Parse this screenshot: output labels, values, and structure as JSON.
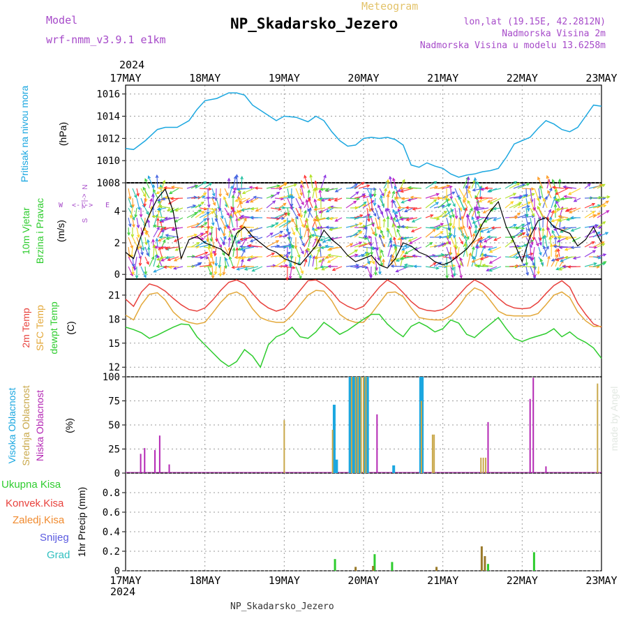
{
  "header": {
    "model_label": "Model",
    "model_name": "wrf-nmm_v3.9.1  e1km",
    "meteogram_label": "Meteogram",
    "station": "NP_Skadarsko_Jezero",
    "lonlat": "lon,lat (19.15E, 42.2812N)",
    "elevation": "Nadmorska Visina 2m",
    "model_elevation": "Nadmorska Visina u modelu 13.6258m",
    "year_top": "2024",
    "year_bottom": "2024",
    "footer_station": "NP_Skadarsko_Jezero",
    "credit": "made by Angel"
  },
  "colors": {
    "pressure": "#1ba7e0",
    "t2m": "#e8413c",
    "tsfc": "#e3a83a",
    "dewpoint": "#2ecc2e",
    "cloud_high": "#1ba7e0",
    "cloud_mid": "#c9a84a",
    "cloud_low": "#b428b4",
    "precip_total": "#2ecc2e",
    "precip_conv": "#e8413c",
    "precip_frozen": "#f08a2e",
    "snow": "#5a5ae0",
    "grad": "#30c0c0",
    "label_purple": "#a64ac9",
    "gold": "#e3c36a"
  },
  "chart_data": [
    {
      "type": "line",
      "panel": "pressure",
      "ylabel_side": "Pritisak na nivou mora",
      "ylabel_units": "(hPa)",
      "x_ticks": [
        "17MAY",
        "18MAY",
        "19MAY",
        "20MAY",
        "21MAY",
        "22MAY",
        "23MAY"
      ],
      "x_range_days": [
        17,
        23
      ],
      "ylim": [
        1008,
        1016.8
      ],
      "y_ticks": [
        "1008",
        "1010",
        "1012",
        "1014",
        "1016"
      ],
      "series": [
        {
          "key": "mslp",
          "x": [
            17.0,
            17.1,
            17.25,
            17.4,
            17.5,
            17.65,
            17.8,
            17.9,
            18.0,
            18.15,
            18.3,
            18.4,
            18.5,
            18.6,
            18.75,
            18.9,
            19.0,
            19.15,
            19.3,
            19.4,
            19.5,
            19.6,
            19.7,
            19.8,
            19.9,
            20.0,
            20.1,
            20.2,
            20.3,
            20.4,
            20.5,
            20.6,
            20.7,
            20.8,
            20.9,
            21.0,
            21.1,
            21.2,
            21.3,
            21.4,
            21.5,
            21.6,
            21.7,
            21.8,
            21.9,
            22.0,
            22.1,
            22.2,
            22.3,
            22.4,
            22.5,
            22.6,
            22.7,
            22.8,
            22.9,
            23.0
          ],
          "y": [
            1011.1,
            1011.0,
            1011.8,
            1012.8,
            1013.0,
            1013.0,
            1013.6,
            1014.6,
            1015.4,
            1015.6,
            1016.1,
            1016.1,
            1015.9,
            1015.0,
            1014.3,
            1013.6,
            1014.0,
            1013.9,
            1013.5,
            1014.0,
            1013.6,
            1012.6,
            1011.8,
            1011.3,
            1011.4,
            1012.0,
            1012.1,
            1012.0,
            1012.1,
            1011.9,
            1011.4,
            1009.6,
            1009.4,
            1009.8,
            1009.5,
            1009.3,
            1008.8,
            1008.5,
            1008.7,
            1008.8,
            1009.0,
            1009.1,
            1009.3,
            1010.3,
            1011.5,
            1011.8,
            1012.1,
            1012.9,
            1013.6,
            1013.3,
            1012.8,
            1012.6,
            1013.0,
            1014.0,
            1015.0,
            1014.9
          ]
        }
      ]
    },
    {
      "type": "line",
      "panel": "wind",
      "ylabel_side": "10m Vjetar Brzina i Pravac",
      "ylabel_units": "(m/s)",
      "compass": {
        "w": "W",
        "e": "E",
        "n": "N",
        "s": "S",
        "arrows": "<-|->"
      },
      "ylim": [
        -0.3,
        5.8
      ],
      "y_ticks": [
        "0",
        "2",
        "4"
      ],
      "series": [
        {
          "key": "wind_speed",
          "x": [
            17.0,
            17.1,
            17.2,
            17.3,
            17.4,
            17.5,
            17.6,
            17.7,
            17.8,
            17.9,
            18.0,
            18.1,
            18.2,
            18.3,
            18.4,
            18.5,
            18.6,
            18.7,
            18.8,
            18.9,
            19.0,
            19.1,
            19.2,
            19.3,
            19.4,
            19.5,
            19.6,
            19.7,
            19.8,
            19.9,
            20.0,
            20.1,
            20.2,
            20.3,
            20.4,
            20.5,
            20.6,
            20.7,
            20.8,
            20.9,
            21.0,
            21.1,
            21.2,
            21.3,
            21.4,
            21.5,
            21.6,
            21.7,
            21.8,
            21.9,
            22.0,
            22.1,
            22.2,
            22.3,
            22.4,
            22.5,
            22.6,
            22.7,
            22.8,
            22.9,
            23.0
          ],
          "y": [
            1.4,
            1.0,
            2.5,
            3.8,
            4.8,
            5.4,
            4.0,
            1.0,
            2.2,
            2.4,
            2.0,
            1.8,
            1.6,
            1.2,
            2.6,
            3.0,
            2.4,
            2.0,
            1.6,
            1.4,
            1.0,
            0.8,
            0.6,
            1.2,
            1.8,
            2.8,
            2.2,
            1.8,
            1.2,
            0.8,
            1.0,
            1.2,
            0.6,
            0.4,
            1.0,
            2.0,
            1.8,
            1.4,
            1.2,
            0.8,
            0.6,
            0.8,
            1.2,
            1.6,
            2.2,
            3.2,
            4.0,
            4.6,
            3.0,
            2.0,
            0.8,
            2.4,
            3.4,
            3.6,
            3.0,
            2.8,
            2.6,
            1.8,
            2.2,
            3.0,
            2.0
          ]
        }
      ]
    },
    {
      "type": "line",
      "panel": "temperature",
      "ylabel_lines": [
        "2m Temp",
        "SFC Temp",
        "dewpt Temp"
      ],
      "ylabel_units": "(C)",
      "ylim": [
        10.8,
        23.0
      ],
      "y_ticks": [
        "12",
        "15",
        "18",
        "21"
      ],
      "series": [
        {
          "key": "t2m",
          "name": "2m Temp",
          "x": [
            17.0,
            17.1,
            17.2,
            17.3,
            17.4,
            17.5,
            17.6,
            17.7,
            17.8,
            17.9,
            18.0,
            18.1,
            18.2,
            18.3,
            18.4,
            18.5,
            18.6,
            18.7,
            18.8,
            18.9,
            19.0,
            19.1,
            19.2,
            19.3,
            19.4,
            19.5,
            19.6,
            19.7,
            19.8,
            19.9,
            20.0,
            20.1,
            20.2,
            20.3,
            20.4,
            20.5,
            20.6,
            20.7,
            20.8,
            20.9,
            21.0,
            21.1,
            21.2,
            21.3,
            21.4,
            21.5,
            21.6,
            21.7,
            21.8,
            21.9,
            22.0,
            22.1,
            22.2,
            22.3,
            22.4,
            22.5,
            22.6,
            22.7,
            22.8,
            22.9,
            23.0
          ],
          "y": [
            20.5,
            19.6,
            21.4,
            22.4,
            22.1,
            21.5,
            20.6,
            19.8,
            19.2,
            19.0,
            19.4,
            20.4,
            21.6,
            22.6,
            22.9,
            22.4,
            21.2,
            20.1,
            19.4,
            19.0,
            19.3,
            20.4,
            21.6,
            22.8,
            22.9,
            22.3,
            21.4,
            20.2,
            19.6,
            19.2,
            19.6,
            20.8,
            22.0,
            22.9,
            22.3,
            21.3,
            20.2,
            19.4,
            19.1,
            19.0,
            19.2,
            19.9,
            21.0,
            22.1,
            22.9,
            22.4,
            21.6,
            20.6,
            19.8,
            19.4,
            19.3,
            19.4,
            20.1,
            21.2,
            22.2,
            22.8,
            22.0,
            20.0,
            18.6,
            17.4,
            17.0
          ]
        },
        {
          "key": "tsfc",
          "name": "SFC Temp",
          "x": [
            17.0,
            17.1,
            17.2,
            17.3,
            17.4,
            17.5,
            17.6,
            17.7,
            17.8,
            17.9,
            18.0,
            18.1,
            18.2,
            18.3,
            18.4,
            18.5,
            18.6,
            18.7,
            18.8,
            18.9,
            19.0,
            19.1,
            19.2,
            19.3,
            19.4,
            19.5,
            19.6,
            19.7,
            19.8,
            19.9,
            20.0,
            20.1,
            20.2,
            20.3,
            20.4,
            20.5,
            20.6,
            20.7,
            20.8,
            20.9,
            21.0,
            21.1,
            21.2,
            21.3,
            21.4,
            21.5,
            21.6,
            21.7,
            21.8,
            21.9,
            22.0,
            22.1,
            22.2,
            22.3,
            22.4,
            22.5,
            22.6,
            22.7,
            22.8,
            22.9,
            23.0
          ],
          "y": [
            18.5,
            17.9,
            19.8,
            21.1,
            21.3,
            20.4,
            18.9,
            18.0,
            17.6,
            17.4,
            17.6,
            18.8,
            20.1,
            21.1,
            21.4,
            20.8,
            19.3,
            18.2,
            17.8,
            17.6,
            17.6,
            18.5,
            19.8,
            21.0,
            21.6,
            21.5,
            20.3,
            18.6,
            17.9,
            17.6,
            17.6,
            18.7,
            20.0,
            21.3,
            21.4,
            20.8,
            19.4,
            18.2,
            18.0,
            17.9,
            17.9,
            18.4,
            19.6,
            21.0,
            21.9,
            21.5,
            20.3,
            19.0,
            18.5,
            18.4,
            18.4,
            18.4,
            18.7,
            19.8,
            21.0,
            21.4,
            20.7,
            18.9,
            17.8,
            17.1,
            17.1
          ]
        },
        {
          "key": "dewpoint",
          "name": "dewpt Temp",
          "x": [
            17.0,
            17.1,
            17.2,
            17.3,
            17.4,
            17.5,
            17.6,
            17.7,
            17.8,
            17.9,
            18.0,
            18.1,
            18.2,
            18.3,
            18.4,
            18.5,
            18.6,
            18.7,
            18.8,
            18.9,
            19.0,
            19.1,
            19.2,
            19.3,
            19.4,
            19.5,
            19.6,
            19.7,
            19.8,
            19.9,
            20.0,
            20.1,
            20.2,
            20.3,
            20.4,
            20.5,
            20.6,
            20.7,
            20.8,
            20.9,
            21.0,
            21.1,
            21.2,
            21.3,
            21.4,
            21.5,
            21.6,
            21.7,
            21.8,
            21.9,
            22.0,
            22.1,
            22.2,
            22.3,
            22.4,
            22.5,
            22.6,
            22.7,
            22.8,
            22.9,
            23.0
          ],
          "y": [
            17.0,
            16.7,
            16.3,
            15.6,
            16.0,
            16.5,
            17.0,
            17.4,
            17.3,
            15.8,
            14.8,
            13.8,
            12.8,
            12.1,
            12.7,
            14.2,
            13.4,
            12.0,
            14.8,
            15.8,
            16.2,
            17.0,
            15.8,
            15.6,
            16.4,
            17.6,
            16.9,
            16.1,
            16.6,
            17.3,
            18.0,
            18.6,
            18.6,
            17.4,
            16.5,
            15.8,
            17.1,
            17.6,
            17.1,
            16.4,
            16.8,
            17.9,
            17.5,
            16.1,
            15.7,
            16.6,
            17.4,
            18.2,
            16.8,
            15.6,
            15.2,
            15.6,
            15.9,
            16.2,
            16.8,
            15.8,
            16.4,
            15.6,
            15.1,
            14.4,
            13.1
          ]
        }
      ]
    },
    {
      "type": "bar",
      "panel": "clouds",
      "ylabel_lines": [
        "Visoka Oblacnost",
        "Srednja Oblacnost",
        "Niska Oblacnost"
      ],
      "ylabel_units": "(%)",
      "ylim": [
        0,
        100
      ],
      "y_ticks": [
        "0",
        "25",
        "50",
        "75",
        "100"
      ],
      "series": [
        {
          "key": "high",
          "name": "Visoka Oblacnost",
          "x": [
            19.63,
            19.66,
            19.83,
            19.86,
            19.89,
            19.92,
            19.95,
            20.02,
            20.05,
            20.38,
            20.72,
            20.74
          ],
          "y": [
            71,
            14,
            100,
            100,
            100,
            100,
            100,
            100,
            100,
            8,
            100,
            100
          ]
        },
        {
          "key": "mid",
          "name": "Srednja Oblacnost",
          "x": [
            19.0,
            19.61,
            19.85,
            19.9,
            19.93,
            19.97,
            20.0,
            20.03,
            20.73,
            20.87,
            20.89,
            21.48,
            21.51,
            21.54,
            22.95
          ],
          "y": [
            55,
            45,
            100,
            100,
            100,
            100,
            100,
            100,
            75,
            40,
            40,
            16,
            16,
            16,
            93
          ]
        },
        {
          "key": "low",
          "name": "Niska Oblacnost",
          "x": [
            17.19,
            17.24,
            17.37,
            17.43,
            17.55,
            20.17,
            21.57,
            22.1,
            22.14,
            22.3
          ],
          "y": [
            20,
            26,
            24,
            39,
            9,
            61,
            53,
            77,
            99,
            7
          ]
        }
      ]
    },
    {
      "type": "bar",
      "panel": "precip",
      "legend": [
        "Ukupna Kisa",
        "Konvek.Kisa",
        "Zaledj.Kisa",
        "Snijeg",
        "Grad"
      ],
      "ylabel_units": "1hr Precip (mm)",
      "ylim": [
        0,
        1.0
      ],
      "y_ticks": [
        "0",
        "0.2",
        "0.4",
        "0.6",
        "0.8"
      ],
      "series": [
        {
          "key": "total",
          "name": "Ukupna Kisa",
          "x": [
            19.64,
            20.14,
            20.36,
            21.57,
            22.15
          ],
          "y": [
            0.12,
            0.17,
            0.09,
            0.07,
            0.19
          ]
        },
        {
          "key": "frozen",
          "name": "Zaledj.Kisa",
          "x": [
            19.9,
            20.12,
            20.92,
            21.49,
            21.53
          ],
          "y": [
            0.04,
            0.05,
            0.04,
            0.25,
            0.15
          ]
        }
      ]
    }
  ]
}
